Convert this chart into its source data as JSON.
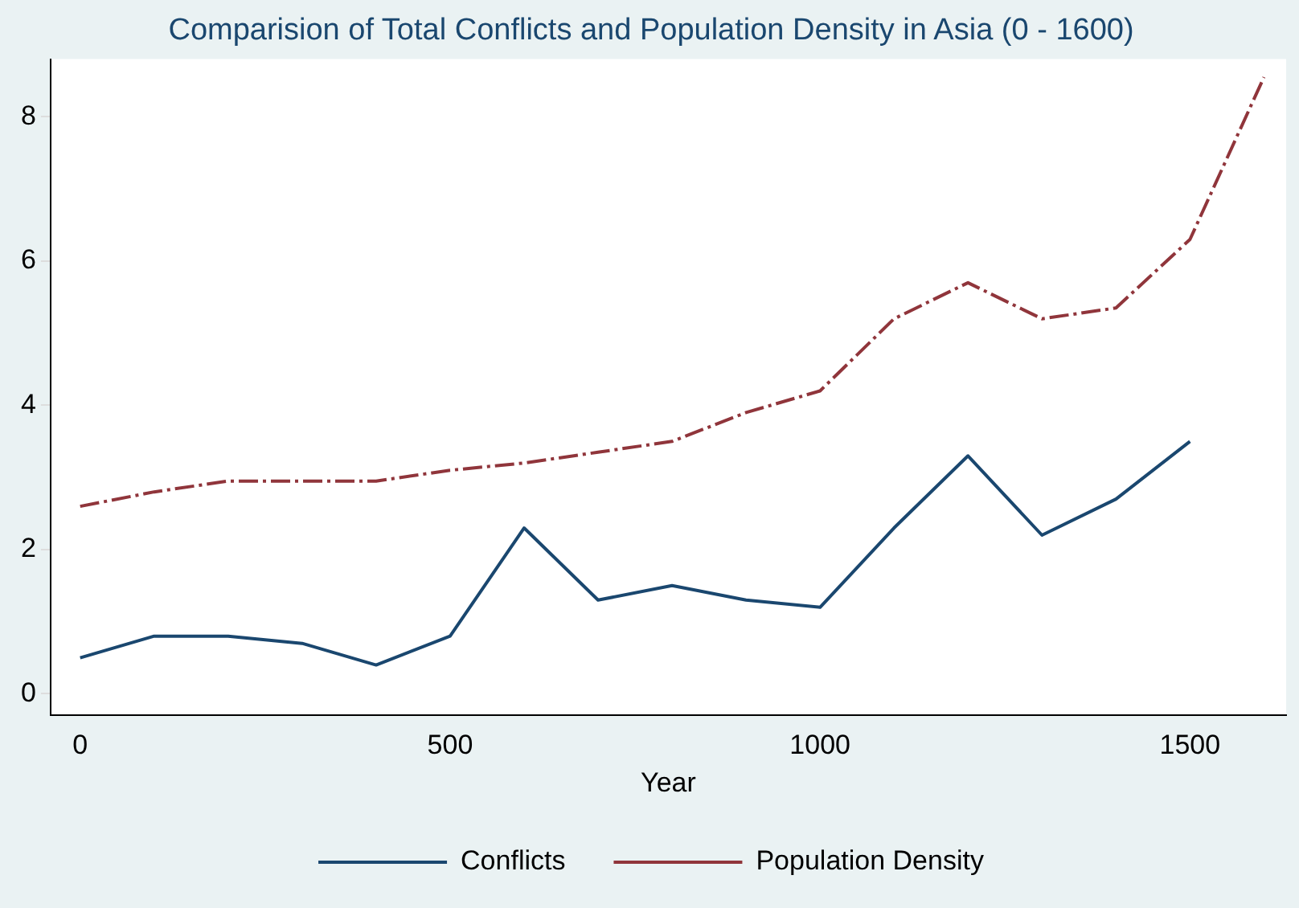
{
  "chart_data": {
    "type": "line",
    "title": "Comparision of Total Conflicts and Population Density in Asia (0 - 1600)",
    "xlabel": "Year",
    "x": [
      0,
      100,
      200,
      300,
      400,
      500,
      600,
      700,
      800,
      900,
      1000,
      1100,
      1200,
      1300,
      1400,
      1500,
      1600
    ],
    "series": [
      {
        "name": "Conflicts",
        "color": "#1a476f",
        "line_style": "solid",
        "values": [
          0.5,
          0.8,
          0.8,
          0.7,
          0.4,
          0.8,
          2.3,
          1.3,
          1.5,
          1.3,
          1.2,
          2.3,
          3.3,
          2.2,
          2.7,
          3.5,
          null
        ]
      },
      {
        "name": "Population Density",
        "color": "#90353b",
        "line_style": "dashdot",
        "values": [
          2.6,
          2.8,
          2.95,
          2.95,
          2.95,
          3.1,
          3.2,
          3.35,
          3.5,
          3.9,
          4.2,
          5.2,
          5.7,
          5.2,
          5.35,
          6.3,
          8.55
        ]
      }
    ],
    "xlim": [
      -40,
      1630
    ],
    "xticks": [
      0,
      500,
      1000,
      1500
    ],
    "ylim": [
      -0.3,
      8.8
    ],
    "yticks": [
      0,
      2,
      4,
      6,
      8
    ],
    "grid": false,
    "legend": "bottom",
    "marker": "none"
  }
}
